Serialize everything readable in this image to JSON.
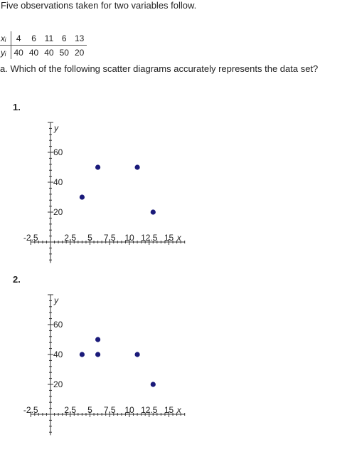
{
  "intro_text": "Five observations taken for two variables follow.",
  "table": {
    "x_header": "xᵢ",
    "y_header": "yᵢ",
    "x_values": [
      "4",
      "6",
      "11",
      "6",
      "13"
    ],
    "y_values": [
      "40",
      "40",
      "40",
      "50",
      "20"
    ]
  },
  "question": "a. Which of the following scatter diagrams accurately represents the data set?",
  "chart_data": [
    {
      "type": "scatter",
      "option_label": "1.",
      "xlabel": "x",
      "ylabel": "y",
      "xlim": [
        -2.5,
        17
      ],
      "ylim": [
        -14,
        80
      ],
      "x_ticks": [
        "-2.5",
        "2.5",
        "5",
        "7.5",
        "10",
        "12.5",
        "15"
      ],
      "y_ticks": [
        "20",
        "40",
        "60"
      ],
      "point_color": "#1a1a7a",
      "points": [
        {
          "x": 4,
          "y": 30
        },
        {
          "x": 6,
          "y": 50
        },
        {
          "x": 11,
          "y": 50
        },
        {
          "x": 13,
          "y": 20
        }
      ]
    },
    {
      "type": "scatter",
      "option_label": "2.",
      "xlabel": "x",
      "ylabel": "y",
      "xlim": [
        -2.5,
        17
      ],
      "ylim": [
        -14,
        80
      ],
      "x_ticks": [
        "-2.5",
        "2.5",
        "5",
        "7.5",
        "10",
        "12.5",
        "15"
      ],
      "y_ticks": [
        "20",
        "40",
        "60"
      ],
      "point_color": "#1a1a7a",
      "points": [
        {
          "x": 4,
          "y": 40
        },
        {
          "x": 6,
          "y": 40
        },
        {
          "x": 6,
          "y": 50
        },
        {
          "x": 11,
          "y": 40
        },
        {
          "x": 13,
          "y": 20
        }
      ]
    }
  ]
}
